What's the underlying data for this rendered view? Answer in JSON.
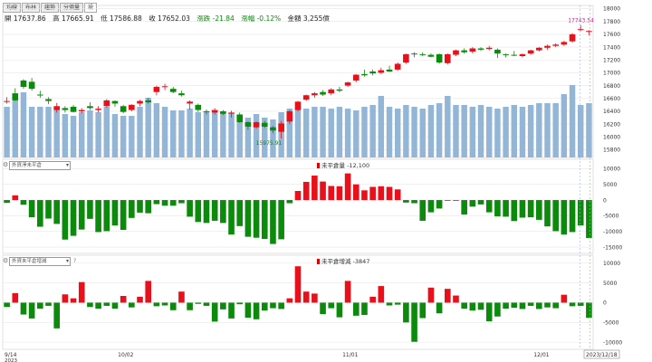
{
  "tabs": [
    "均線",
    "布林",
    "趨勢",
    "分價量",
    "設"
  ],
  "ohlc": {
    "open": "開 17637.86",
    "high": "高 17665.91",
    "low": "低 17586.88",
    "close": "收 17652.03",
    "change": "漲跌 -21.84",
    "change_pct": "漲幅 -0.12%",
    "turnover": "金額 3,255億"
  },
  "panel2": {
    "selector": "外資淨未平倉",
    "legend": "未平倉量 -12,100"
  },
  "panel3": {
    "selector": "外資未平倉增減",
    "legend": "未平倉增減 -3847"
  },
  "colors": {
    "up": "#e8101a",
    "down": "#0c8a0c",
    "volume": "#93b5d6",
    "grid": "#e6e6e6"
  },
  "chart_data": [
    {
      "type": "candlestick",
      "x_tick_labels": [
        "9/14",
        "10/02",
        "11/01",
        "12/01",
        "2023/12/18"
      ],
      "x_sub_label": "2023",
      "y_ticks": [
        15800,
        16000,
        16200,
        16400,
        16600,
        16800,
        17000,
        17200,
        17400,
        17600,
        17800,
        18000
      ],
      "ylim": [
        15680,
        18050
      ],
      "annotations": [
        "17743.54",
        "15975.91"
      ],
      "candles_ohlc": [
        [
          16560,
          16620,
          16520,
          16560
        ],
        [
          16680,
          16760,
          16560,
          16570
        ],
        [
          16880,
          16900,
          16750,
          16780
        ],
        [
          16860,
          16920,
          16720,
          16750
        ],
        [
          16660,
          16720,
          16610,
          16650
        ],
        [
          16590,
          16620,
          16510,
          16560
        ],
        [
          16420,
          16530,
          16380,
          16480
        ],
        [
          16450,
          16480,
          16380,
          16420
        ],
        [
          16470,
          16500,
          16380,
          16390
        ],
        [
          16400,
          16450,
          16370,
          16420
        ],
        [
          16480,
          16540,
          16420,
          16450
        ],
        [
          16420,
          16480,
          16380,
          16440
        ],
        [
          16480,
          16590,
          16460,
          16570
        ],
        [
          16560,
          16570,
          16470,
          16520
        ],
        [
          16480,
          16500,
          16370,
          16390
        ],
        [
          16420,
          16510,
          16400,
          16500
        ],
        [
          16520,
          16580,
          16480,
          16560
        ],
        [
          16570,
          16610,
          16520,
          16540
        ],
        [
          16700,
          16800,
          16650,
          16780
        ],
        [
          16780,
          16830,
          16730,
          16790
        ],
        [
          16750,
          16780,
          16680,
          16700
        ],
        [
          16680,
          16720,
          16630,
          16650
        ],
        [
          16520,
          16570,
          16430,
          16550
        ],
        [
          16500,
          16520,
          16390,
          16420
        ],
        [
          16400,
          16430,
          16350,
          16390
        ],
        [
          16380,
          16450,
          16350,
          16420
        ],
        [
          16400,
          16420,
          16340,
          16360
        ],
        [
          16360,
          16410,
          16300,
          16380
        ],
        [
          16350,
          16380,
          16220,
          16230
        ],
        [
          16230,
          16240,
          16110,
          16160
        ],
        [
          16150,
          16240,
          16130,
          16230
        ],
        [
          16220,
          16250,
          16140,
          16160
        ],
        [
          16150,
          16170,
          16060,
          16100
        ],
        [
          16080,
          16250,
          15976,
          16210
        ],
        [
          16240,
          16420,
          16200,
          16400
        ],
        [
          16420,
          16560,
          16400,
          16550
        ],
        [
          16580,
          16660,
          16560,
          16650
        ],
        [
          16650,
          16700,
          16610,
          16680
        ],
        [
          16700,
          16730,
          16640,
          16660
        ],
        [
          16680,
          16760,
          16650,
          16740
        ],
        [
          16740,
          16780,
          16700,
          16720
        ],
        [
          16800,
          16860,
          16780,
          16850
        ],
        [
          16880,
          16980,
          16850,
          16970
        ],
        [
          16980,
          17050,
          16940,
          16960
        ],
        [
          17020,
          17050,
          16960,
          16990
        ],
        [
          17000,
          17080,
          16980,
          17040
        ],
        [
          17050,
          17110,
          17010,
          17020
        ],
        [
          17050,
          17160,
          17030,
          17140
        ],
        [
          17160,
          17300,
          17140,
          17290
        ],
        [
          17300,
          17320,
          17240,
          17290
        ],
        [
          17290,
          17320,
          17260,
          17280
        ],
        [
          17280,
          17300,
          17240,
          17250
        ],
        [
          17290,
          17300,
          17140,
          17160
        ],
        [
          17150,
          17300,
          17130,
          17290
        ],
        [
          17280,
          17360,
          17260,
          17350
        ],
        [
          17350,
          17380,
          17300,
          17320
        ],
        [
          17330,
          17400,
          17300,
          17380
        ],
        [
          17380,
          17400,
          17340,
          17360
        ],
        [
          17370,
          17420,
          17350,
          17390
        ],
        [
          17360,
          17380,
          17230,
          17300
        ],
        [
          17290,
          17300,
          17240,
          17280
        ],
        [
          17280,
          17340,
          17260,
          17270
        ],
        [
          17260,
          17300,
          17240,
          17290
        ],
        [
          17300,
          17360,
          17280,
          17350
        ],
        [
          17350,
          17400,
          17330,
          17390
        ],
        [
          17390,
          17440,
          17360,
          17420
        ],
        [
          17420,
          17460,
          17400,
          17440
        ],
        [
          17440,
          17500,
          17420,
          17480
        ],
        [
          17490,
          17620,
          17470,
          17600
        ],
        [
          17680,
          17743.54,
          17650,
          17680
        ],
        [
          17638,
          17666,
          17587,
          17652
        ]
      ],
      "volume": [
        2800,
        3250,
        3600,
        2800,
        2800,
        2800,
        2700,
        2400,
        2300,
        2500,
        2600,
        2500,
        2800,
        2400,
        2300,
        2300,
        2800,
        3300,
        3000,
        2800,
        2600,
        2600,
        2700,
        2500,
        2500,
        2600,
        2500,
        2400,
        2300,
        2200,
        2400,
        2200,
        2100,
        2500,
        2700,
        2800,
        2700,
        2800,
        2800,
        2700,
        2800,
        2700,
        2600,
        2800,
        2900,
        3400,
        2800,
        2700,
        2900,
        2800,
        2700,
        2900,
        3000,
        3400,
        2900,
        2900,
        2800,
        2900,
        2800,
        2700,
        2800,
        2900,
        2800,
        2900,
        3000,
        3000,
        3000,
        3500,
        4000,
        2900,
        3000
      ]
    },
    {
      "type": "bar",
      "y_ticks": [
        10000,
        5000,
        0,
        -5000,
        -10000,
        -15000
      ],
      "ylim": [
        -17000,
        13000
      ],
      "values": [
        -900,
        1500,
        -1500,
        -5500,
        -8500,
        -5900,
        -7600,
        -12600,
        -11400,
        -9400,
        -6000,
        -10200,
        -9900,
        -8100,
        -9500,
        -5700,
        -4000,
        -4200,
        -1300,
        -1800,
        -1800,
        -1000,
        -5300,
        -7000,
        -7300,
        -6600,
        -7300,
        -11000,
        -8300,
        -11700,
        -12000,
        -12400,
        -14000,
        -12500,
        -1000,
        2900,
        5800,
        7800,
        5900,
        4500,
        4400,
        8500,
        5000,
        3100,
        4200,
        4400,
        4200,
        3400,
        -800,
        -1000,
        -6600,
        -3900,
        -2700,
        -200,
        0,
        -4600,
        -2100,
        -1400,
        -3900,
        -5200,
        -5300,
        -6700,
        -5600,
        -5500,
        -6300,
        -8400,
        -9900,
        -11000,
        -10200,
        -8100,
        -12100
      ]
    },
    {
      "type": "bar",
      "y_ticks": [
        10000,
        5000,
        0,
        -5000,
        -10000
      ],
      "ylim": [
        -11800,
        12000
      ],
      "values": [
        -1100,
        2400,
        -3000,
        -4000,
        -1500,
        -800,
        -6500,
        2100,
        1100,
        5200,
        -1100,
        -1500,
        -800,
        -1500,
        1700,
        -1200,
        1500,
        5500,
        -900,
        -700,
        -1900,
        2800,
        -1900,
        -300,
        -800,
        -4800,
        -1700,
        -4000,
        -400,
        -3800,
        -4200,
        -2000,
        -1400,
        -1600,
        1100,
        9200,
        2800,
        2300,
        -2900,
        -1400,
        -3700,
        5500,
        -3300,
        -3100,
        1500,
        4200,
        -700,
        -500,
        -5000,
        -9900,
        -3900,
        3800,
        -2700,
        3500,
        1800,
        -1500,
        -2000,
        -1800,
        -4700,
        -3500,
        -1500,
        -1300,
        -1600,
        -800,
        -1600,
        -1200,
        -1400,
        2000,
        -900,
        -800,
        -3847
      ]
    }
  ]
}
